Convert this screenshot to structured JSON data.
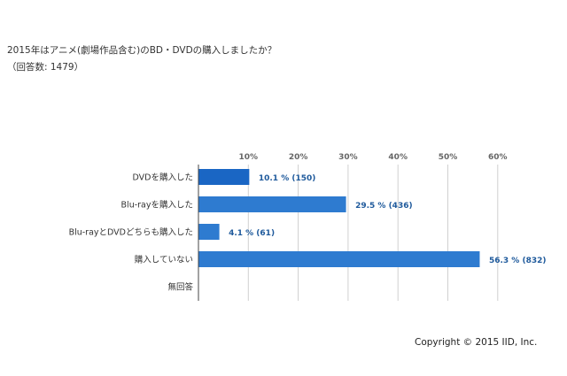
{
  "title": "2015年はアニメ(劇場作品含む)のBD・DVDの購入しましたか？",
  "subtitle": "（回答数: 1479）",
  "copyright": "Copyright © 2015 IID, Inc.",
  "colors": {
    "bar": "#2e7bd0",
    "bar_first": "#1a66c4",
    "label": "#1f5a9c",
    "axis": "#666666",
    "grid": "#d0d0d0"
  },
  "chart_data": {
    "type": "bar",
    "orientation": "horizontal",
    "xlim": [
      0,
      60
    ],
    "ticks": [
      "10%",
      "20%",
      "30%",
      "40%",
      "50%",
      "60%"
    ],
    "tick_values": [
      10,
      20,
      30,
      40,
      50,
      60
    ],
    "categories": [
      "DVDを購入した",
      "Blu-rayを購入した",
      "Blu-rayとDVDどちらも購入した",
      "購入していない",
      "無回答"
    ],
    "values": [
      10.1,
      29.5,
      4.1,
      56.3,
      0
    ],
    "value_labels": [
      "10.1 % (150)",
      "29.5 % (436)",
      "4.1 % (61)",
      "56.3 % (832)",
      ""
    ],
    "grid": true,
    "legend": "none"
  }
}
